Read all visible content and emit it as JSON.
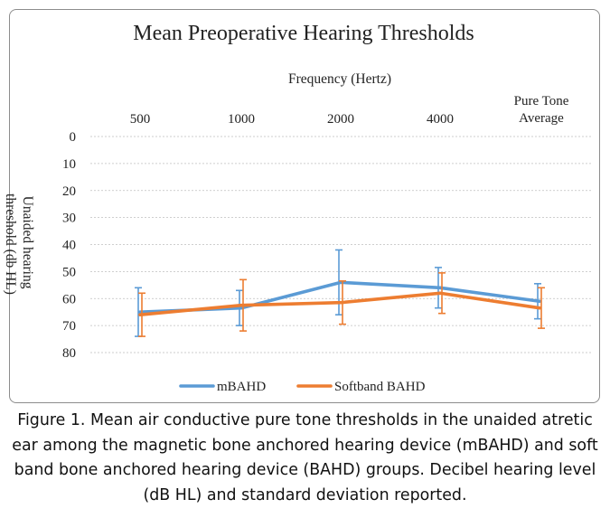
{
  "chart_data": {
    "type": "line",
    "title": "Mean Preoperative Hearing Thresholds",
    "xlabel": "Frequency (Hertz)",
    "ylabel": "Unaided hearing threshold (db HL)",
    "categories": [
      "500",
      "1000",
      "2000",
      "4000",
      "Pure Tone Average"
    ],
    "x_axis_position": "top",
    "y_axis_reversed": true,
    "ylim": [
      0,
      80
    ],
    "y_ticks": [
      0,
      10,
      20,
      30,
      40,
      50,
      60,
      70,
      80
    ],
    "grid": true,
    "legend_position": "bottom",
    "series": [
      {
        "name": "mBAHD",
        "color": "#5b9bd5",
        "values": [
          65,
          63.5,
          54,
          56,
          61
        ],
        "error": [
          9,
          6.5,
          12,
          7.5,
          6.5
        ]
      },
      {
        "name": "Softband BAHD",
        "color": "#ed7d31",
        "values": [
          66,
          62.5,
          61.5,
          58,
          63.5
        ],
        "error": [
          8,
          9.5,
          8,
          7.5,
          7.5
        ]
      }
    ]
  },
  "caption": "Figure 1. Mean air conductive pure tone thresholds in the unaided atretic ear among the magnetic bone anchored hearing device (mBAHD) and soft band bone anchored hearing device (BAHD) groups. Decibel hearing level (dB HL) and standard deviation reported."
}
